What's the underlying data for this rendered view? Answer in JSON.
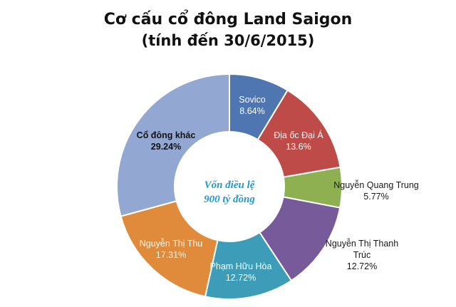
{
  "chart_data": {
    "type": "pie",
    "title": "Cơ cấu cổ đông Land Saigon",
    "subtitle": "(tính đến 30/6/2015)",
    "center_text": [
      "Vốn điều lệ",
      "900 tỷ đồng"
    ],
    "slices": [
      {
        "name": "Sovico",
        "value": 8.64,
        "label": "8.64%",
        "color": "#4f76b0"
      },
      {
        "name": "Địa ốc Đại Á",
        "value": 13.6,
        "label": "13.6%",
        "color": "#bf4b48"
      },
      {
        "name": "Nguyễn Quang Trung",
        "value": 5.77,
        "label": "5.77%",
        "color": "#8eb050"
      },
      {
        "name": "Nguyễn Thị Thanh Trúc",
        "name_lines": [
          "Nguyễn Thị Thanh",
          "Trúc"
        ],
        "value": 12.72,
        "label": "12.72%",
        "color": "#775a99"
      },
      {
        "name": "Phạm Hữu Hòa",
        "value": 12.72,
        "label": "12.72%",
        "color": "#3d9cb8"
      },
      {
        "name": "Nguyễn Thị Thu",
        "value": 17.31,
        "label": "17.31%",
        "color": "#e08a3c"
      },
      {
        "name": "Cổ đông khác",
        "value": 29.24,
        "label": "29.24%",
        "color": "#92a8d3"
      }
    ]
  }
}
